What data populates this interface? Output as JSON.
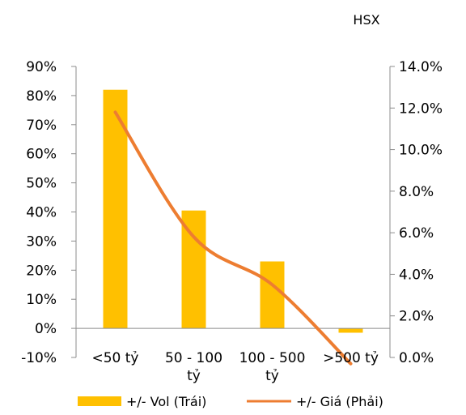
{
  "chart_data": {
    "type": "bar",
    "title": "HSX",
    "categories": [
      "<50 tỷ",
      "50 - 100 tỷ",
      "100 - 500 tỷ",
      ">500 tỷ"
    ],
    "series": [
      {
        "name": "+/- Vol (Trái)",
        "type": "bar",
        "axis": "left",
        "values": [
          82,
          40.5,
          23,
          -1.5
        ],
        "color": "#FFC000"
      },
      {
        "name": "+/- Giá (Phải)",
        "type": "line",
        "axis": "right",
        "values": [
          11.8,
          5.8,
          3.5,
          -0.3
        ],
        "color": "#ED7D31"
      }
    ],
    "y_left": {
      "min": -10,
      "max": 90,
      "step": 10,
      "tick_labels": [
        "-10%",
        "0%",
        "10%",
        "20%",
        "30%",
        "40%",
        "50%",
        "60%",
        "70%",
        "80%",
        "90%"
      ]
    },
    "y_right": {
      "min": 0,
      "max": 14,
      "step": 2,
      "tick_labels": [
        "0.0%",
        "2.0%",
        "4.0%",
        "6.0%",
        "8.0%",
        "10.0%",
        "12.0%",
        "14.0%"
      ]
    },
    "grid": false,
    "legend_position": "bottom"
  }
}
